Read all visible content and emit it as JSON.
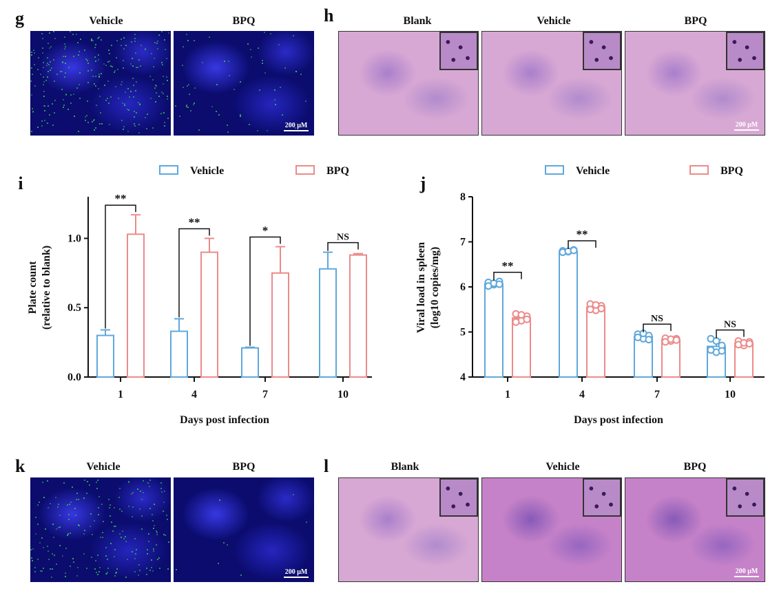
{
  "panels": {
    "g": {
      "letter": "g",
      "titles": [
        "Vehicle",
        "BPQ"
      ],
      "scale": "200 μM"
    },
    "h": {
      "letter": "h",
      "titles": [
        "Blank",
        "Vehicle",
        "BPQ"
      ],
      "scale": "200 μM"
    },
    "k": {
      "letter": "k",
      "titles": [
        "Vehicle",
        "BPQ"
      ],
      "scale": "200 μM"
    },
    "l": {
      "letter": "l",
      "titles": [
        "Blank",
        "Vehicle",
        "BPQ"
      ],
      "scale": "200 μM"
    }
  },
  "colors": {
    "vehicle": "#5fa8dc",
    "bpq": "#ec8a8a",
    "fluor_green": "#3ddc4c"
  },
  "chart_data": [
    {
      "panel": "i",
      "type": "bar",
      "categories": [
        "1",
        "4",
        "7",
        "10"
      ],
      "series": [
        {
          "name": "Vehicle",
          "values": [
            0.3,
            0.33,
            0.21,
            0.78
          ],
          "errors": [
            0.04,
            0.09,
            0.005,
            0.12
          ]
        },
        {
          "name": "BPQ",
          "values": [
            1.03,
            0.9,
            0.75,
            0.88
          ],
          "errors": [
            0.14,
            0.1,
            0.19,
            0.01
          ]
        }
      ],
      "xlabel": "Days post infection",
      "ylabel": [
        "Plate count",
        "(relative to blank)"
      ],
      "ylim": [
        0,
        1.3
      ],
      "yticks": [
        "0.0",
        "0.5",
        "1.0"
      ],
      "significance": [
        "**",
        "**",
        "*",
        "NS"
      ],
      "legend": "top"
    },
    {
      "panel": "j",
      "type": "bar",
      "categories": [
        "1",
        "4",
        "7",
        "10"
      ],
      "series": [
        {
          "name": "Vehicle",
          "values": [
            6.07,
            6.79,
            4.9,
            4.68
          ],
          "errors": [
            0.04,
            0.02,
            0.06,
            0.15
          ],
          "points": [
            [
              6.1,
              6.05,
              6.12,
              6.02,
              6.08,
              6.06
            ],
            [
              6.8,
              6.78,
              6.82,
              6.77,
              6.79,
              6.81
            ],
            [
              4.95,
              4.85,
              4.92,
              4.88,
              4.97,
              4.83
            ],
            [
              4.85,
              4.55,
              4.7,
              4.6,
              4.8,
              4.58
            ]
          ]
        },
        {
          "name": "BPQ",
          "values": [
            5.31,
            5.55,
            4.83,
            4.75
          ],
          "errors": [
            0.08,
            0.08,
            0.03,
            0.05
          ],
          "points": [
            [
              5.4,
              5.25,
              5.35,
              5.22,
              5.38,
              5.28
            ],
            [
              5.62,
              5.48,
              5.58,
              5.5,
              5.6,
              5.52
            ],
            [
              4.86,
              4.8,
              4.85,
              4.78,
              4.84,
              4.82
            ],
            [
              4.8,
              4.7,
              4.78,
              4.72,
              4.76,
              4.74
            ]
          ]
        }
      ],
      "xlabel": "Days post infection",
      "ylabel": [
        "Viral load in spleen",
        "(log10 copies/mg)"
      ],
      "ylim": [
        4,
        8
      ],
      "yticks": [
        "4",
        "5",
        "6",
        "7",
        "8"
      ],
      "significance": [
        "**",
        "**",
        "NS",
        "NS"
      ],
      "legend": "top"
    }
  ]
}
